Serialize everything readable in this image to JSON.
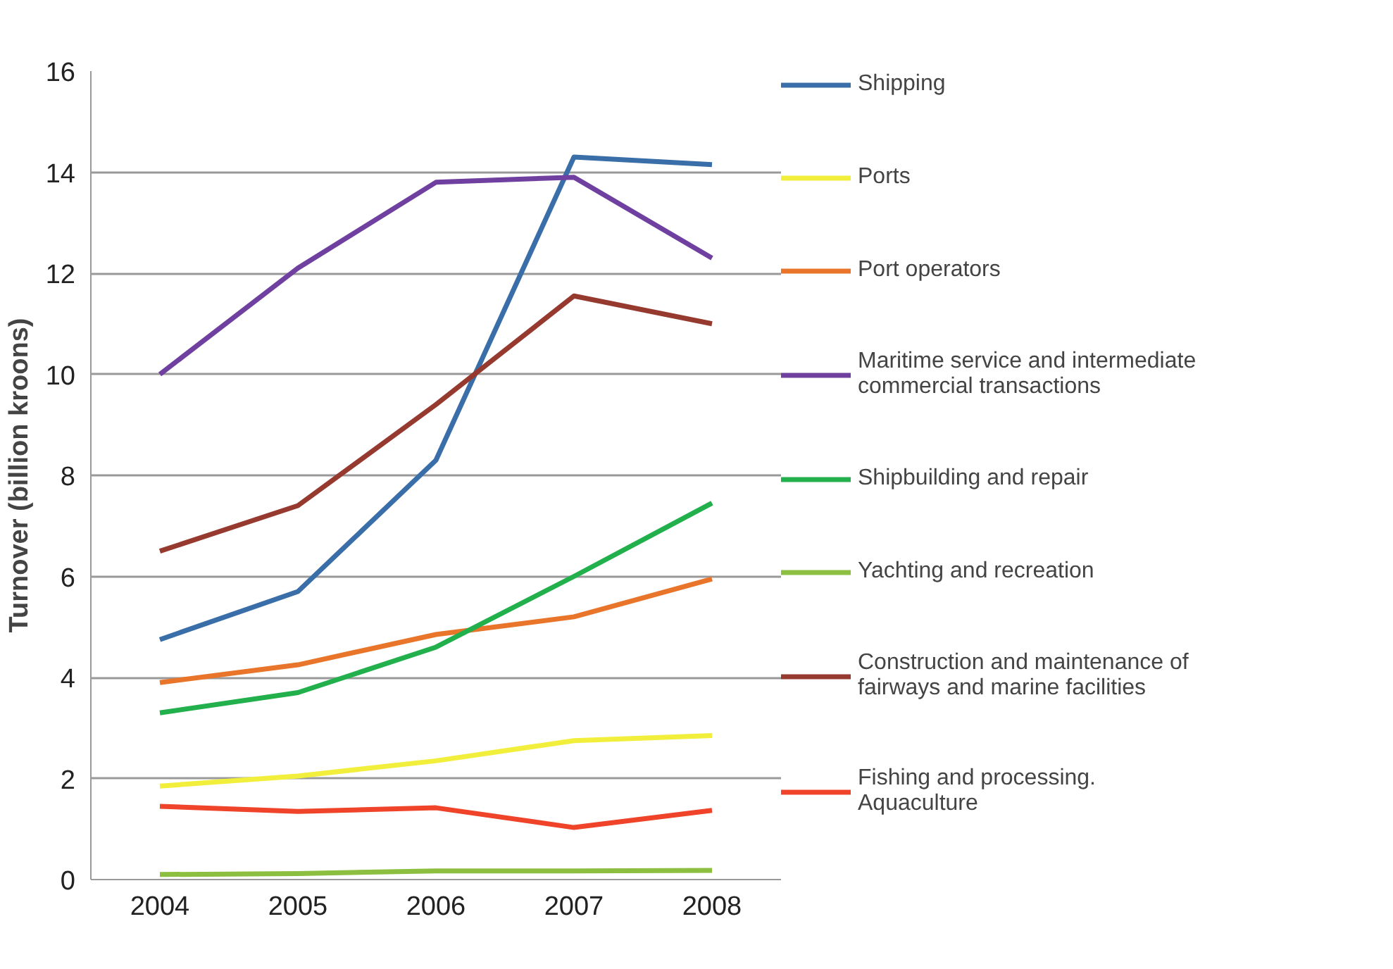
{
  "chart_data": {
    "type": "line",
    "ylabel": "Turnover (billion kroons)",
    "categories": [
      "2004",
      "2005",
      "2006",
      "2007",
      "2008"
    ],
    "ylim": [
      0,
      16
    ],
    "yticks": [
      0,
      2,
      4,
      6,
      8,
      10,
      12,
      14,
      16
    ],
    "grid": "y",
    "legend": "right",
    "line_style": "solid",
    "marker": "none",
    "series": [
      {
        "name": "Shipping",
        "color": "#3a6ea8",
        "values": [
          4.75,
          5.7,
          8.3,
          14.3,
          14.15
        ]
      },
      {
        "name": "Ports",
        "color": "#f2ef3c",
        "values": [
          1.85,
          2.05,
          2.35,
          2.75,
          2.85
        ]
      },
      {
        "name": "Port operators",
        "color": "#e8752a",
        "values": [
          3.9,
          4.25,
          4.85,
          5.2,
          5.95
        ]
      },
      {
        "name": "Maritime service and intermediate commercial transactions",
        "color": "#7040a0",
        "values": [
          10.0,
          12.1,
          13.8,
          13.9,
          12.3
        ]
      },
      {
        "name": "Shipbuilding and repair",
        "color": "#22b04c",
        "values": [
          3.3,
          3.7,
          4.6,
          6.0,
          7.45
        ]
      },
      {
        "name": "Yachting and recreation",
        "color": "#8cbf3f",
        "values": [
          0.1,
          0.12,
          0.17,
          0.17,
          0.18
        ]
      },
      {
        "name": "Construction and maintenance of fairways and marine facilities",
        "color": "#963a30",
        "values": [
          6.5,
          7.4,
          9.4,
          11.55,
          11.0
        ]
      },
      {
        "name": "Fishing and processing. Aquaculture",
        "color": "#f0442a",
        "values": [
          1.45,
          1.35,
          1.42,
          1.03,
          1.37
        ]
      }
    ]
  }
}
